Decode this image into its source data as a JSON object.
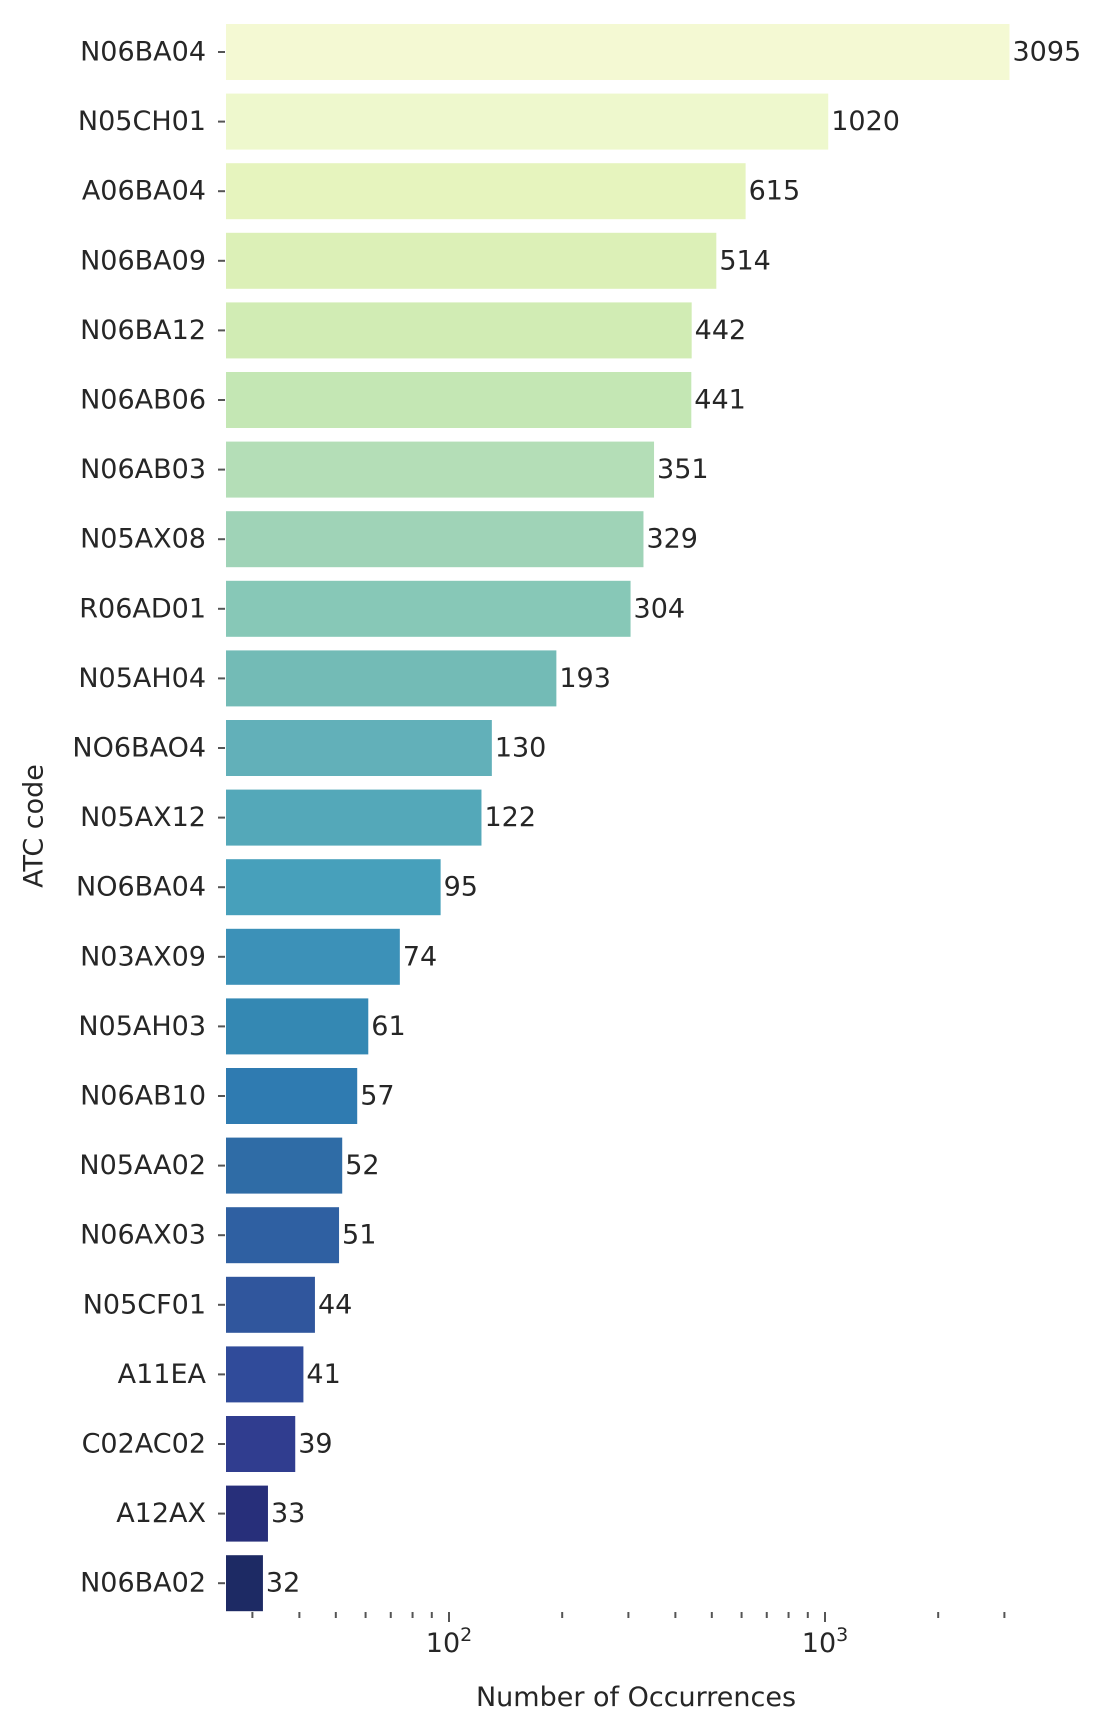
{
  "chart_data": {
    "type": "bar",
    "orientation": "horizontal",
    "xscale": "log",
    "xlabel": "Number of Occurrences",
    "ylabel": "ATC code",
    "xlim": [
      27,
      5200
    ],
    "grid": false,
    "legend": "none",
    "colormap": "YlGnBu",
    "categories": [
      "N06BA04",
      "N05CH01",
      "A06BA04",
      "N06BA09",
      "N06BA12",
      "N06AB06",
      "N06AB03",
      "N05AX08",
      "R06AD01",
      "N05AH04",
      "NO6BAO4",
      "N05AX12",
      "NO6BA04",
      "N03AX09",
      "N05AH03",
      "N06AB10",
      "N05AA02",
      "N06AX03",
      "N05CF01",
      "A11EA",
      "C02AC02",
      "A12AX",
      "N06BA02"
    ],
    "values": [
      3095,
      1020,
      615,
      514,
      442,
      441,
      351,
      329,
      304,
      193,
      130,
      122,
      95,
      74,
      61,
      57,
      52,
      51,
      44,
      41,
      39,
      33,
      32
    ],
    "data_labels": [
      "3095",
      "1020",
      "615",
      "514",
      "442",
      "441",
      "351",
      "329",
      "304",
      "193",
      "130",
      "122",
      "95",
      "74",
      "61",
      "57",
      "52",
      "51",
      "44",
      "41",
      "39",
      "33",
      "32"
    ],
    "bar_colors": [
      "#f4f9d3",
      "#eef8cd",
      "#e6f4be",
      "#dcf0b7",
      "#d1ecb4",
      "#c4e7b4",
      "#b4deb7",
      "#9fd3b7",
      "#87c8b7",
      "#73bbb6",
      "#62b0b9",
      "#54a8b9",
      "#47a0bb",
      "#3c91b8",
      "#3488b3",
      "#2f7bb1",
      "#2f6ca6",
      "#2f60a2",
      "#30569d",
      "#304b9a",
      "#303d8f",
      "#272f7a",
      "#1d2a64"
    ],
    "x_major_ticks": [
      {
        "value": 100,
        "base": "10",
        "exp": "2"
      },
      {
        "value": 1000,
        "base": "10",
        "exp": "3"
      }
    ],
    "x_minor_ticks": [
      30,
      40,
      50,
      60,
      70,
      80,
      90,
      200,
      300,
      400,
      500,
      600,
      700,
      800,
      900,
      2000,
      3000
    ]
  }
}
